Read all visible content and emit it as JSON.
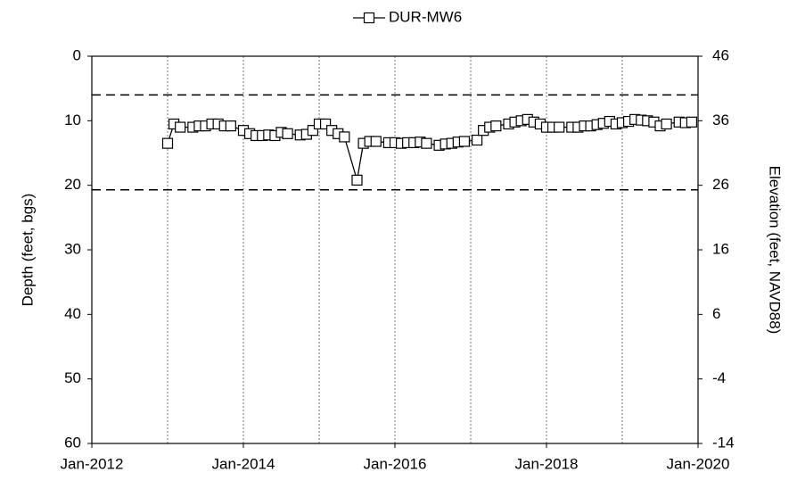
{
  "chart_data": {
    "type": "line",
    "ylabel": "Depth (feet, bgs)",
    "y2label": "Elevation (feet, NAVD88)",
    "ylim": [
      0,
      60
    ],
    "yticks": [
      0,
      10,
      20,
      30,
      40,
      50,
      60
    ],
    "y2lim": [
      46,
      -14
    ],
    "y2ticks": [
      46,
      36,
      26,
      16,
      6,
      -4,
      -14
    ],
    "xlim": [
      "2012-01",
      "2020-01"
    ],
    "xticks": [
      {
        "value": "2012-01",
        "label": "Jan-2012"
      },
      {
        "value": "2014-01",
        "label": "Jan-2014"
      },
      {
        "value": "2016-01",
        "label": "Jan-2016"
      },
      {
        "value": "2018-01",
        "label": "Jan-2018"
      },
      {
        "value": "2020-01",
        "label": "Jan-2020"
      }
    ],
    "xgrid": [
      "2013-01",
      "2014-01",
      "2015-01",
      "2016-01",
      "2017-01",
      "2018-01",
      "2019-01"
    ],
    "reference_lines": [
      6,
      20.7
    ],
    "legend": "top",
    "x": [
      "2013-01",
      "2013-02",
      "2013-03",
      "2013-05",
      "2013-06",
      "2013-07",
      "2013-08",
      "2013-09",
      "2013-10",
      "2013-11",
      "2014-01",
      "2014-02",
      "2014-03",
      "2014-04",
      "2014-05",
      "2014-06",
      "2014-07",
      "2014-08",
      "2014-10",
      "2014-11",
      "2014-12",
      "2015-01",
      "2015-02",
      "2015-03",
      "2015-04",
      "2015-05",
      "2015-07",
      "2015-08",
      "2015-09",
      "2015-10",
      "2015-12",
      "2016-01",
      "2016-02",
      "2016-03",
      "2016-04",
      "2016-05",
      "2016-06",
      "2016-08",
      "2016-09",
      "2016-10",
      "2016-11",
      "2016-12",
      "2017-02",
      "2017-03",
      "2017-04",
      "2017-05",
      "2017-07",
      "2017-08",
      "2017-09",
      "2017-10",
      "2017-11",
      "2017-12",
      "2018-01",
      "2018-02",
      "2018-03",
      "2018-05",
      "2018-06",
      "2018-07",
      "2018-08",
      "2018-09",
      "2018-10",
      "2018-11",
      "2018-12",
      "2019-01",
      "2019-02",
      "2019-03",
      "2019-04",
      "2019-05",
      "2019-06",
      "2019-07",
      "2019-08",
      "2019-10",
      "2019-11",
      "2019-12"
    ],
    "series": [
      {
        "name": "DUR-MW6",
        "color": "#000000",
        "values": [
          13.5,
          10.5,
          11,
          11,
          10.8,
          10.8,
          10.5,
          10.5,
          10.8,
          10.8,
          11.5,
          12,
          12.3,
          12.3,
          12.2,
          12.3,
          11.8,
          12,
          12.2,
          12.1,
          11.5,
          10.5,
          10.5,
          11.5,
          12,
          12.5,
          19.2,
          13.5,
          13.2,
          13.2,
          13.4,
          13.4,
          13.5,
          13.4,
          13.4,
          13.3,
          13.5,
          13.8,
          13.6,
          13.5,
          13.3,
          13.2,
          13,
          11.5,
          11,
          10.8,
          10.5,
          10.2,
          10,
          9.8,
          10.2,
          10.5,
          11,
          11,
          11,
          11,
          11,
          10.8,
          10.8,
          10.6,
          10.4,
          10.1,
          10.5,
          10.3,
          10.1,
          9.8,
          9.9,
          10,
          10.2,
          10.8,
          10.5,
          10.2,
          10.3,
          10.2
        ]
      }
    ]
  }
}
